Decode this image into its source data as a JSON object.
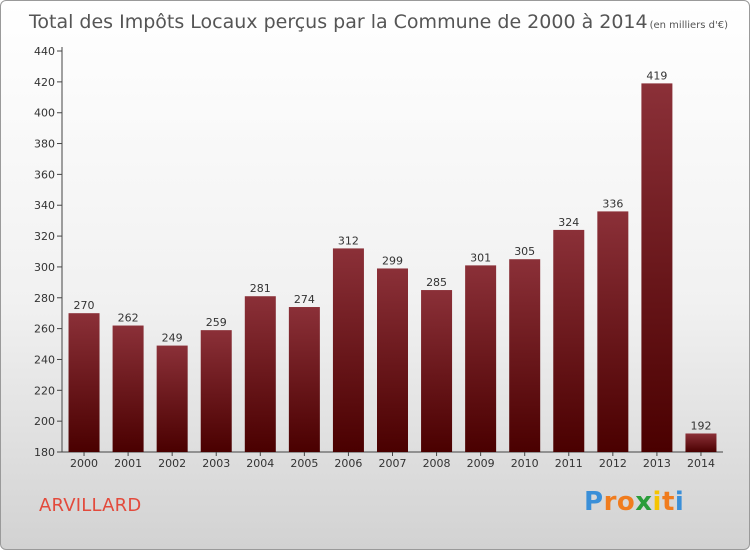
{
  "chart_data": {
    "type": "bar",
    "title": "Total des Impôts Locaux perçus par la Commune de 2000 à 2014",
    "subtitle": "(en milliers d'€)",
    "categories": [
      "2000",
      "2001",
      "2002",
      "2003",
      "2004",
      "2005",
      "2006",
      "2007",
      "2008",
      "2009",
      "2010",
      "2011",
      "2012",
      "2013",
      "2014"
    ],
    "values": [
      270,
      262,
      249,
      259,
      281,
      274,
      312,
      299,
      285,
      301,
      305,
      324,
      336,
      419,
      192
    ],
    "ylim": [
      180,
      440
    ],
    "yticks": [
      180,
      200,
      220,
      240,
      260,
      280,
      300,
      320,
      340,
      360,
      380,
      400,
      420,
      440
    ],
    "grid": false,
    "colors": {
      "bar_top": "#8b3038",
      "bar_bottom": "#4a0000",
      "title": "#555555"
    }
  },
  "commune": {
    "name": "ARVILLARD",
    "color": "#e34a3c"
  },
  "logo": {
    "letters": [
      "P",
      "r",
      "o",
      "x",
      "i",
      "t",
      "i"
    ],
    "colors": [
      "#3a8fd8",
      "#f07c1e",
      "#f07c1e",
      "#2a9d3a",
      "#f5c400",
      "#f07c1e",
      "#3a8fd8"
    ]
  }
}
